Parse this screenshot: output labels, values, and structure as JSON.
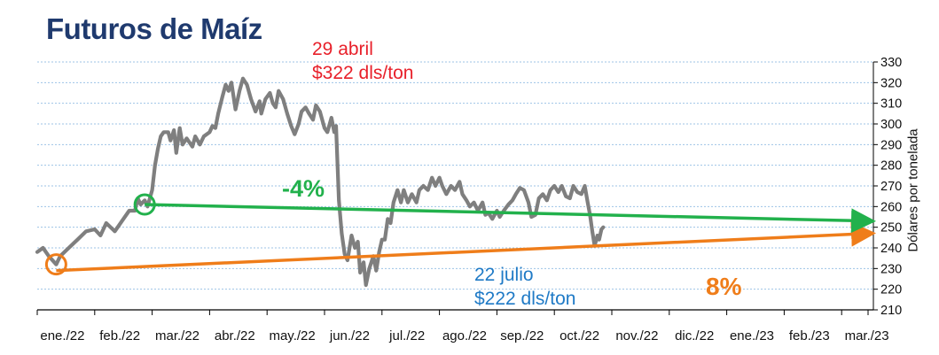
{
  "title": "Futuros de Maíz",
  "annotations": {
    "high_date": "29 abril",
    "high_price": "$322 dls/ton",
    "low_date": "22 julio",
    "low_price": "$222 dls/ton",
    "pct_green": "-4%",
    "pct_orange": "8%"
  },
  "colors": {
    "price_line": "#7f7f7f",
    "green": "#22b14c",
    "orange": "#ef7d1a",
    "grid": "#9dc3e6",
    "title": "#1f3a6e"
  },
  "chart_data": {
    "type": "line",
    "title": "Futuros de Maíz",
    "xlabel": "",
    "ylabel": "Dólares por tonelada",
    "ylim": [
      210,
      330
    ],
    "yticks": [
      210,
      220,
      230,
      240,
      250,
      260,
      270,
      280,
      290,
      300,
      310,
      320,
      330
    ],
    "xticks": [
      "ene./22",
      "feb./22",
      "mar./22",
      "abr./22",
      "may./22",
      "jun./22",
      "jul./22",
      "ago./22",
      "sep./22",
      "oct./22",
      "nov./22",
      "dic./22",
      "ene./23",
      "feb./23",
      "mar./23"
    ],
    "grid": true,
    "series": [
      {
        "points": [
          [
            0.0,
            238
          ],
          [
            0.1,
            240
          ],
          [
            0.2,
            236
          ],
          [
            0.33,
            232
          ],
          [
            0.4,
            236
          ],
          [
            0.55,
            240
          ],
          [
            0.7,
            244
          ],
          [
            0.85,
            248
          ],
          [
            1.0,
            249
          ],
          [
            1.1,
            246
          ],
          [
            1.2,
            252
          ],
          [
            1.35,
            248
          ],
          [
            1.5,
            254
          ],
          [
            1.6,
            258
          ],
          [
            1.7,
            258
          ],
          [
            1.75,
            264
          ],
          [
            1.8,
            261
          ],
          [
            1.87,
            263
          ],
          [
            1.92,
            260
          ],
          [
            2.0,
            268
          ],
          [
            2.05,
            280
          ],
          [
            2.1,
            288
          ],
          [
            2.15,
            294
          ],
          [
            2.2,
            296
          ],
          [
            2.28,
            296
          ],
          [
            2.32,
            292
          ],
          [
            2.38,
            297
          ],
          [
            2.42,
            286
          ],
          [
            2.48,
            298
          ],
          [
            2.53,
            290
          ],
          [
            2.6,
            293
          ],
          [
            2.7,
            289
          ],
          [
            2.75,
            294
          ],
          [
            2.83,
            290
          ],
          [
            2.9,
            294
          ],
          [
            3.0,
            296
          ],
          [
            3.05,
            299
          ],
          [
            3.1,
            298
          ],
          [
            3.15,
            305
          ],
          [
            3.22,
            313
          ],
          [
            3.28,
            319
          ],
          [
            3.33,
            316
          ],
          [
            3.38,
            320
          ],
          [
            3.45,
            307
          ],
          [
            3.52,
            316
          ],
          [
            3.58,
            322
          ],
          [
            3.65,
            319
          ],
          [
            3.72,
            312
          ],
          [
            3.8,
            306
          ],
          [
            3.87,
            311
          ],
          [
            3.9,
            305
          ],
          [
            3.97,
            312
          ],
          [
            4.05,
            315
          ],
          [
            4.1,
            310
          ],
          [
            4.15,
            308
          ],
          [
            4.2,
            316
          ],
          [
            4.28,
            312
          ],
          [
            4.35,
            305
          ],
          [
            4.42,
            299
          ],
          [
            4.48,
            295
          ],
          [
            4.55,
            300
          ],
          [
            4.6,
            306
          ],
          [
            4.67,
            308
          ],
          [
            4.73,
            305
          ],
          [
            4.8,
            302
          ],
          [
            4.85,
            309
          ],
          [
            4.92,
            306
          ],
          [
            5.0,
            298
          ],
          [
            5.05,
            296
          ],
          [
            5.12,
            303
          ],
          [
            5.17,
            296
          ],
          [
            5.2,
            299
          ],
          [
            5.25,
            263
          ],
          [
            5.3,
            247
          ],
          [
            5.35,
            237
          ],
          [
            5.4,
            234
          ],
          [
            5.47,
            246
          ],
          [
            5.53,
            240
          ],
          [
            5.58,
            243
          ],
          [
            5.62,
            228
          ],
          [
            5.68,
            233
          ],
          [
            5.72,
            222
          ],
          [
            5.78,
            230
          ],
          [
            5.85,
            236
          ],
          [
            5.9,
            229
          ],
          [
            5.95,
            238
          ],
          [
            6.0,
            244
          ],
          [
            6.05,
            244
          ],
          [
            6.1,
            254
          ],
          [
            6.15,
            252
          ],
          [
            6.2,
            262
          ],
          [
            6.27,
            268
          ],
          [
            6.33,
            262
          ],
          [
            6.38,
            268
          ],
          [
            6.45,
            262
          ],
          [
            6.52,
            266
          ],
          [
            6.6,
            262
          ],
          [
            6.65,
            268
          ],
          [
            6.72,
            270
          ],
          [
            6.8,
            268
          ],
          [
            6.87,
            274
          ],
          [
            6.93,
            270
          ],
          [
            7.0,
            274
          ],
          [
            7.05,
            270
          ],
          [
            7.12,
            266
          ],
          [
            7.2,
            270
          ],
          [
            7.27,
            268
          ],
          [
            7.35,
            272
          ],
          [
            7.4,
            266
          ],
          [
            7.47,
            263
          ],
          [
            7.53,
            260
          ],
          [
            7.6,
            262
          ],
          [
            7.67,
            258
          ],
          [
            7.75,
            262
          ],
          [
            7.8,
            256
          ],
          [
            7.85,
            257
          ],
          [
            7.92,
            254
          ],
          [
            8.0,
            258
          ],
          [
            8.05,
            255
          ],
          [
            8.12,
            258
          ],
          [
            8.2,
            261
          ],
          [
            8.27,
            263
          ],
          [
            8.33,
            266
          ],
          [
            8.4,
            269
          ],
          [
            8.47,
            268
          ],
          [
            8.55,
            262
          ],
          [
            8.6,
            255
          ],
          [
            8.67,
            256
          ],
          [
            8.73,
            264
          ],
          [
            8.8,
            266
          ],
          [
            8.87,
            263
          ],
          [
            8.93,
            268
          ],
          [
            9.0,
            270
          ],
          [
            9.07,
            267
          ],
          [
            9.13,
            270
          ],
          [
            9.2,
            265
          ],
          [
            9.27,
            264
          ],
          [
            9.33,
            270
          ],
          [
            9.4,
            267
          ],
          [
            9.47,
            266
          ],
          [
            9.53,
            270
          ],
          [
            9.58,
            262
          ],
          [
            9.62,
            256
          ],
          [
            9.66,
            248
          ],
          [
            9.7,
            241
          ],
          [
            9.75,
            246
          ],
          [
            9.78,
            244
          ],
          [
            9.82,
            249
          ],
          [
            9.85,
            250
          ]
        ]
      }
    ]
  }
}
